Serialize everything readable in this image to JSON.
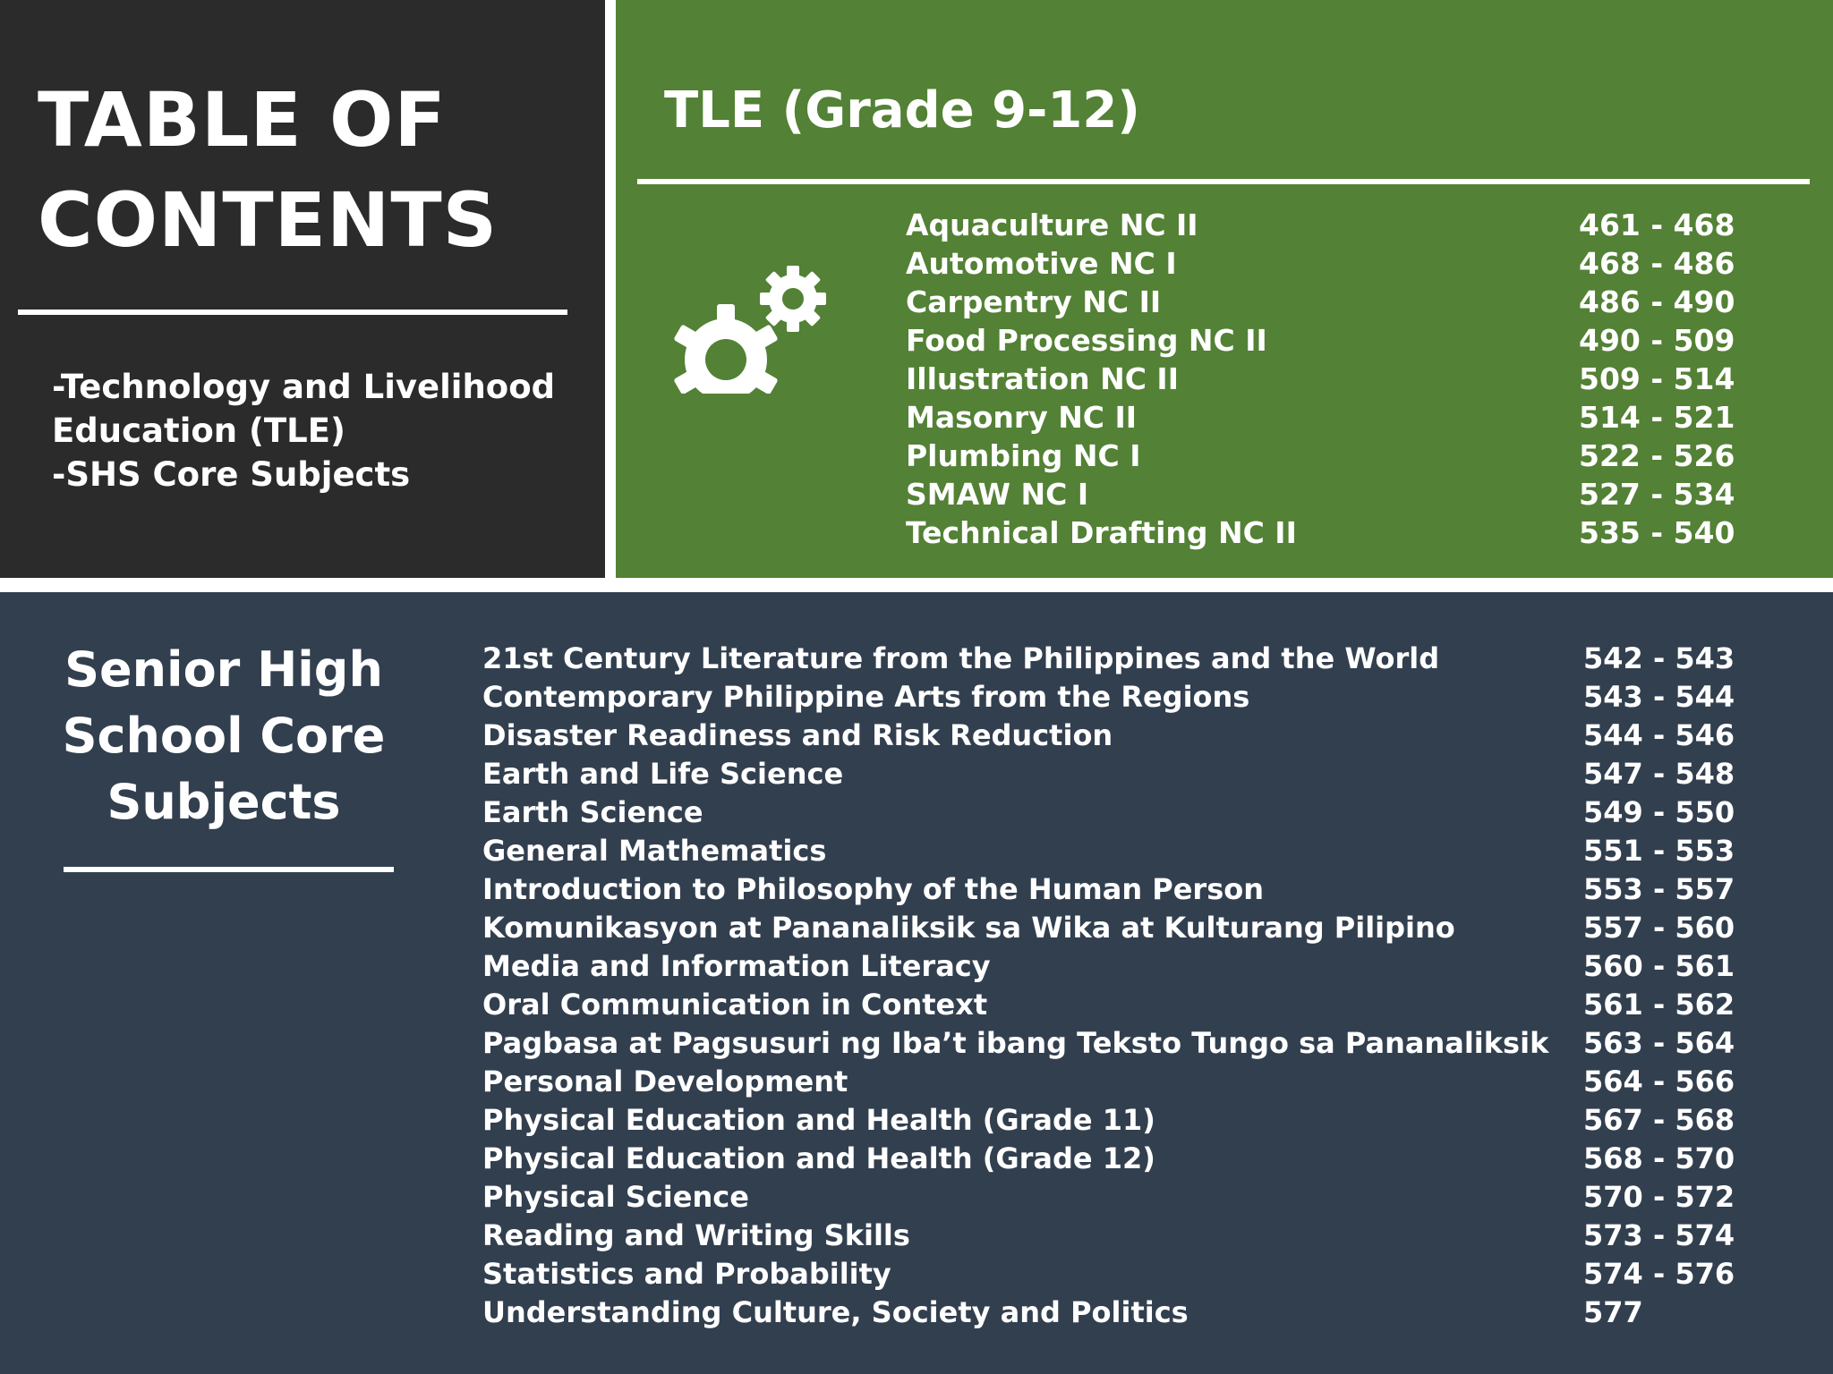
{
  "toc": {
    "title_line1": "TABLE OF",
    "title_line2": "CONTENTS",
    "desc_line1": "-Technology and Livelihood",
    "desc_line2": "Education (TLE)",
    "desc_line3": "-SHS Core Subjects"
  },
  "tle": {
    "title": "TLE (Grade 9-12)",
    "icon": "gears-icon",
    "entries": [
      {
        "subject": "Aquaculture NC II",
        "pages": "461 - 468"
      },
      {
        "subject": "Automotive NC I",
        "pages": "468 - 486"
      },
      {
        "subject": "Carpentry NC II",
        "pages": "486 - 490"
      },
      {
        "subject": "Food Processing NC II",
        "pages": "490 - 509"
      },
      {
        "subject": "Illustration NC II",
        "pages": "509 - 514"
      },
      {
        "subject": "Masonry NC II",
        "pages": "514 - 521"
      },
      {
        "subject": "Plumbing NC I",
        "pages": "522 - 526"
      },
      {
        "subject": "SMAW NC I",
        "pages": "527 - 534"
      },
      {
        "subject": "Technical Drafting NC II",
        "pages": "535 - 540"
      }
    ]
  },
  "shs": {
    "title_line1": "Senior High",
    "title_line2": "School Core",
    "title_line3": "Subjects",
    "entries": [
      {
        "subject": "21st Century Literature from the Philippines and the World",
        "pages": "542 - 543"
      },
      {
        "subject": "Contemporary Philippine Arts from the Regions",
        "pages": "543 - 544"
      },
      {
        "subject": "Disaster Readiness and Risk Reduction",
        "pages": "544 - 546"
      },
      {
        "subject": "Earth and Life Science",
        "pages": "547 - 548"
      },
      {
        "subject": "Earth Science",
        "pages": "549 - 550"
      },
      {
        "subject": "General Mathematics",
        "pages": "551 - 553"
      },
      {
        "subject": "Introduction to Philosophy of the Human Person",
        "pages": "553 - 557"
      },
      {
        "subject": "Komunikasyon at Pananaliksik sa Wika at Kulturang Pilipino",
        "pages": "557 - 560"
      },
      {
        "subject": "Media and Information Literacy",
        "pages": "560 - 561"
      },
      {
        "subject": "Oral Communication in Context",
        "pages": "561 - 562"
      },
      {
        "subject": "Pagbasa at Pagsusuri ng Iba’t ibang Teksto Tungo sa Pananaliksik",
        "pages": "563 - 564"
      },
      {
        "subject": "Personal Development",
        "pages": "564 - 566"
      },
      {
        "subject": "Physical Education and Health (Grade 11)",
        "pages": "567 - 568"
      },
      {
        "subject": "Physical Education and Health (Grade 12)",
        "pages": "568 - 570"
      },
      {
        "subject": "Physical Science",
        "pages": "570 - 572"
      },
      {
        "subject": "Reading and Writing Skills",
        "pages": "573 - 574"
      },
      {
        "subject": "Statistics and Probability",
        "pages": "574 - 576"
      },
      {
        "subject": "Understanding Culture, Society and Politics",
        "pages": "577"
      }
    ]
  },
  "colors": {
    "dark_panel": "#2b2b2b",
    "green_panel": "#538135",
    "navy_panel": "#323f4f",
    "text": "#ffffff"
  }
}
